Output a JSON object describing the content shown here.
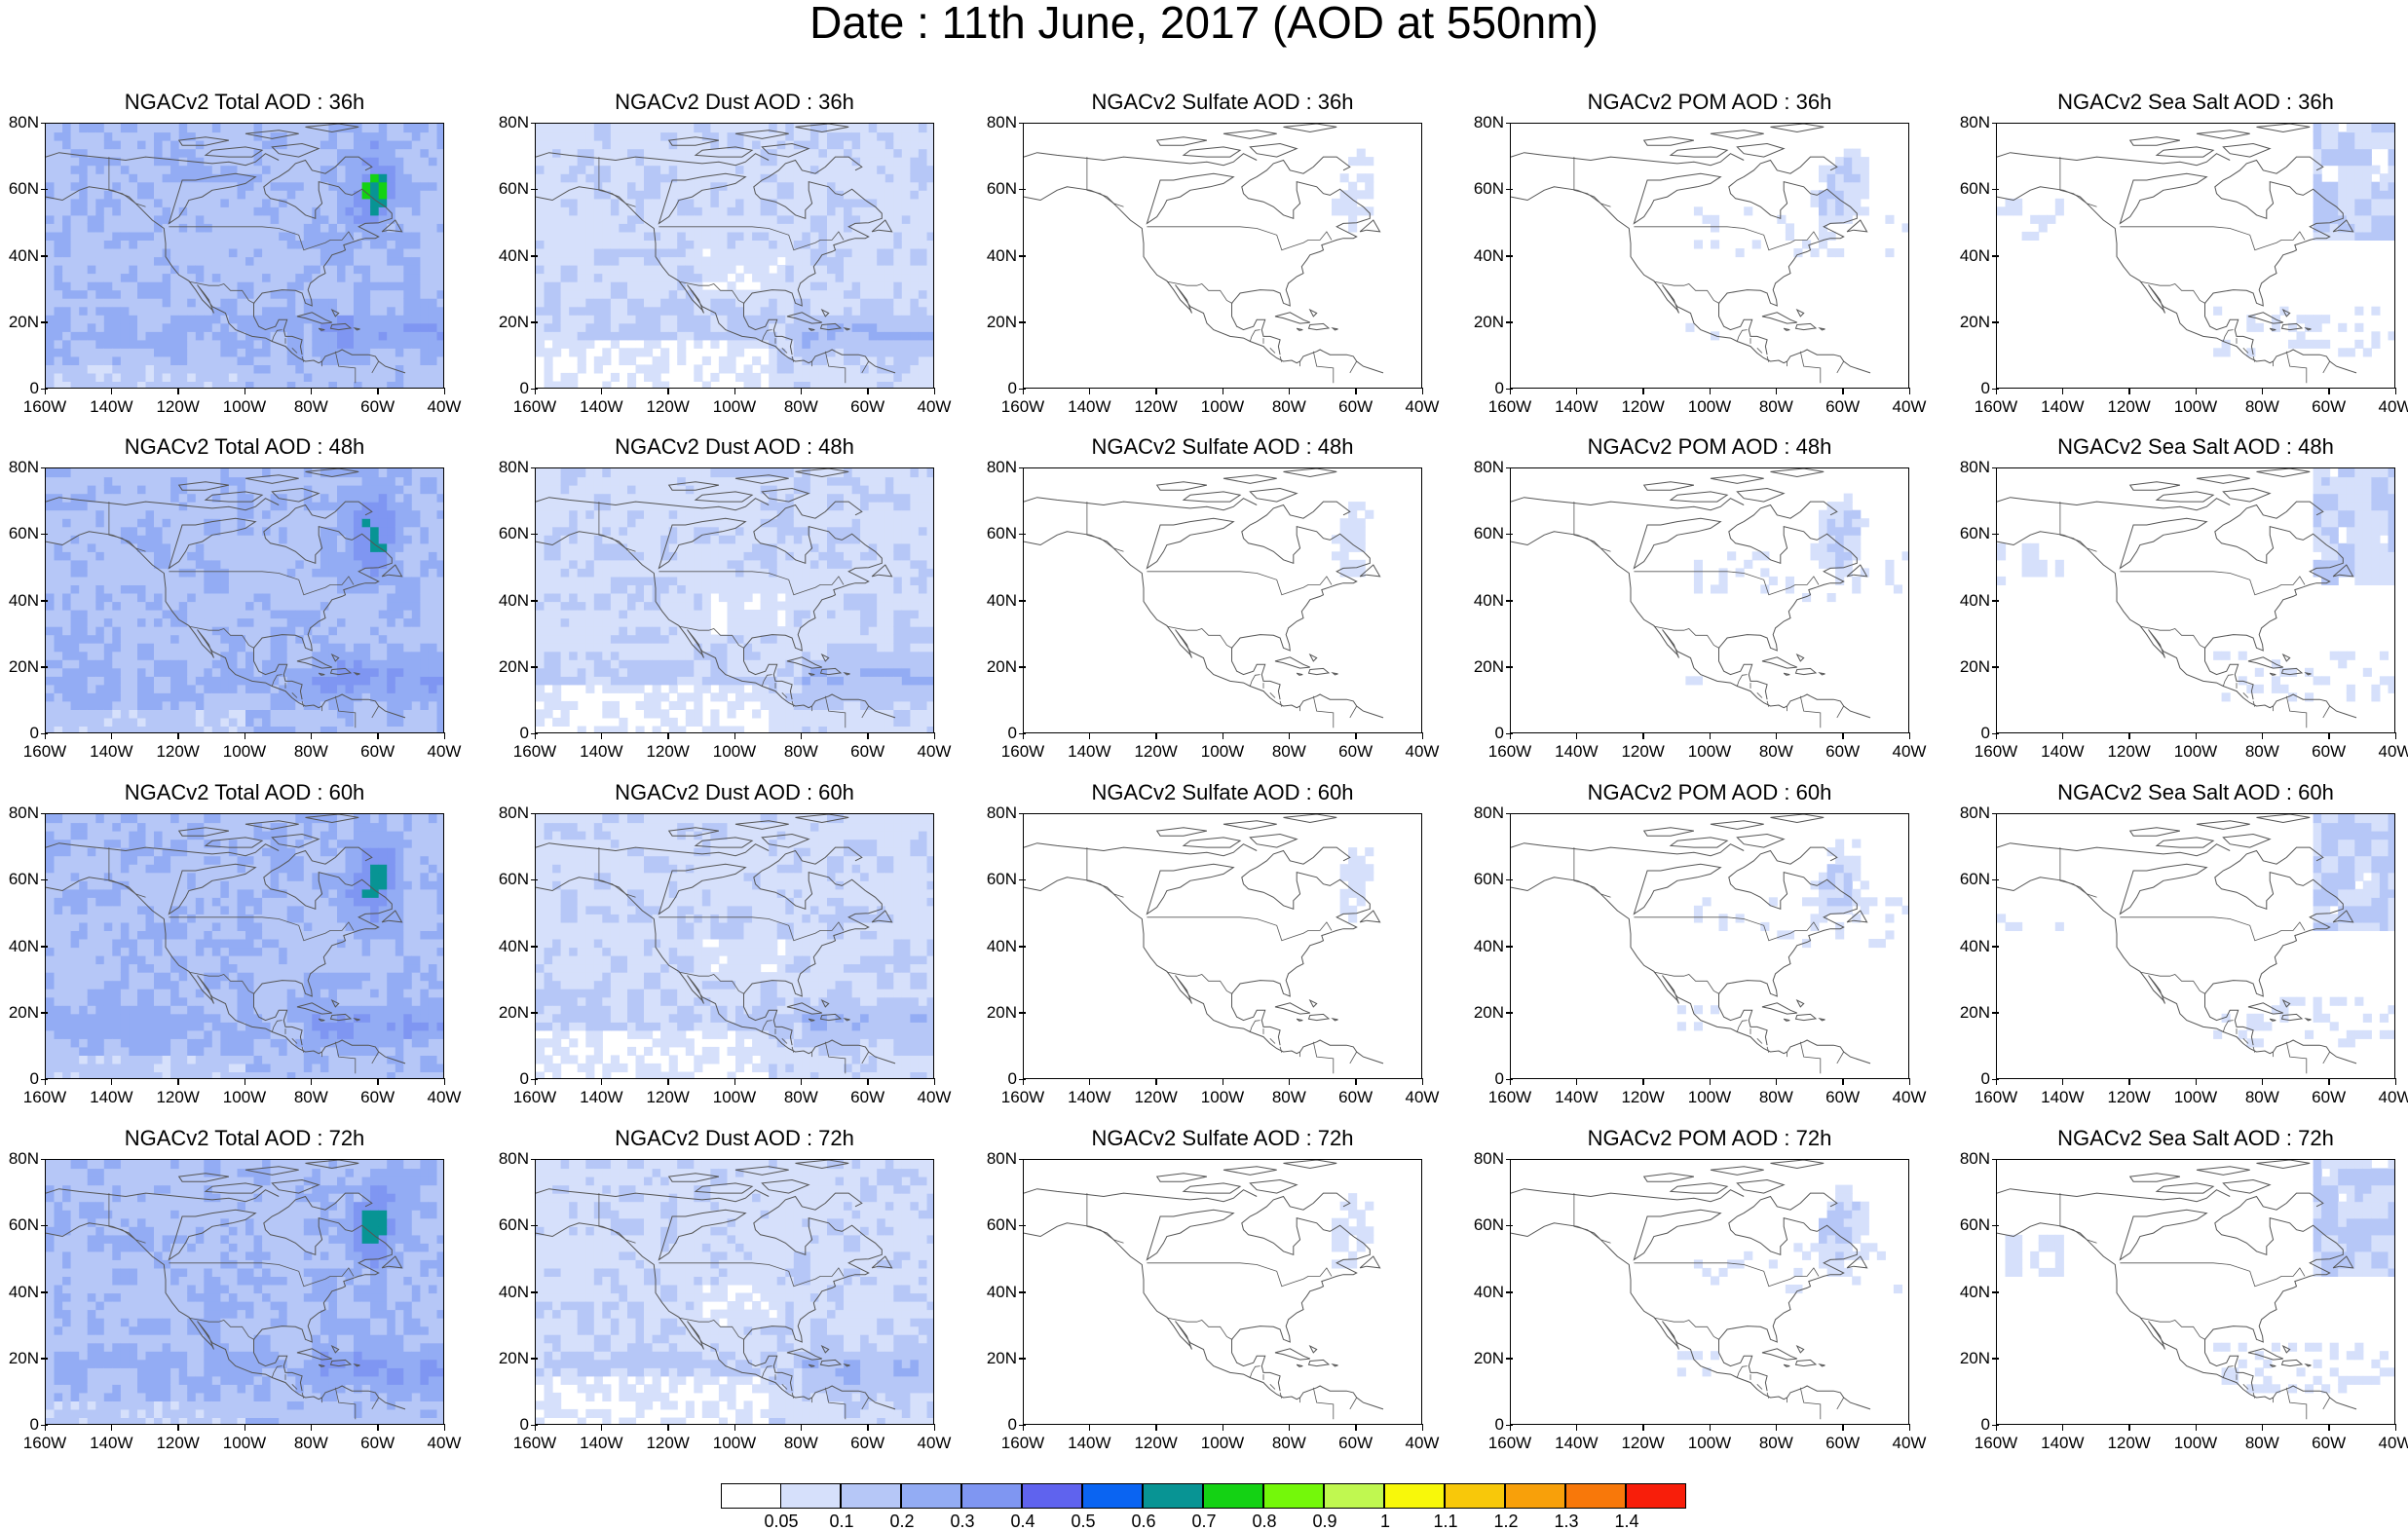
{
  "title": "Date : 11th June, 2017 (AOD at 550nm)",
  "lat_labels": [
    "80N",
    "60N",
    "40N",
    "20N",
    "0"
  ],
  "lon_labels": [
    "160W",
    "140W",
    "120W",
    "100W",
    "80W",
    "60W",
    "40W"
  ],
  "rows": [
    {
      "forecast_hour": "36h",
      "panels": [
        {
          "species": "total",
          "title": "NGACv2 Total AOD : 36h"
        },
        {
          "species": "dust",
          "title": "NGACv2 Dust AOD : 36h"
        },
        {
          "species": "sulfate",
          "title": "NGACv2 Sulfate AOD : 36h"
        },
        {
          "species": "pom",
          "title": "NGACv2 POM AOD : 36h"
        },
        {
          "species": "seasalt",
          "title": "NGACv2 Sea Salt AOD : 36h"
        }
      ]
    },
    {
      "forecast_hour": "48h",
      "panels": [
        {
          "species": "total",
          "title": "NGACv2 Total AOD : 48h"
        },
        {
          "species": "dust",
          "title": "NGACv2 Dust AOD : 48h"
        },
        {
          "species": "sulfate",
          "title": "NGACv2 Sulfate AOD : 48h"
        },
        {
          "species": "pom",
          "title": "NGACv2 POM AOD : 48h"
        },
        {
          "species": "seasalt",
          "title": "NGACv2 Sea Salt AOD : 48h"
        }
      ]
    },
    {
      "forecast_hour": "60h",
      "panels": [
        {
          "species": "total",
          "title": "NGACv2 Total AOD : 60h"
        },
        {
          "species": "dust",
          "title": "NGACv2 Dust AOD : 60h"
        },
        {
          "species": "sulfate",
          "title": "NGACv2 Sulfate AOD : 60h"
        },
        {
          "species": "pom",
          "title": "NGACv2 POM AOD : 60h"
        },
        {
          "species": "seasalt",
          "title": "NGACv2 Sea Salt AOD : 60h"
        }
      ]
    },
    {
      "forecast_hour": "72h",
      "panels": [
        {
          "species": "total",
          "title": "NGACv2 Total AOD : 72h"
        },
        {
          "species": "dust",
          "title": "NGACv2 Dust AOD : 72h"
        },
        {
          "species": "sulfate",
          "title": "NGACv2 Sulfate AOD : 72h"
        },
        {
          "species": "pom",
          "title": "NGACv2 POM AOD : 72h"
        },
        {
          "species": "seasalt",
          "title": "NGACv2 Sea Salt  AOD : 72h"
        }
      ]
    }
  ],
  "colorbar": {
    "labels": [
      "0.05",
      "0.1",
      "0.2",
      "0.3",
      "0.4",
      "0.5",
      "0.6",
      "0.7",
      "0.8",
      "0.9",
      "1",
      "1.1",
      "1.2",
      "1.3",
      "1.4"
    ],
    "colors": [
      "#ffffff",
      "#d6e0fb",
      "#b6c7f7",
      "#93acf4",
      "#7f96f2",
      "#5f63ee",
      "#0a64f2",
      "#089494",
      "#14d214",
      "#74f80a",
      "#c0f850",
      "#f8f80a",
      "#f8c80a",
      "#f8a00a",
      "#f8780a",
      "#f81e0a"
    ]
  },
  "colors": {
    "land_outline": "#555555",
    "very_light": "#d6e0fb",
    "light": "#b6c7f7",
    "medium": "#93acf4",
    "dark": "#7f96f2"
  }
}
